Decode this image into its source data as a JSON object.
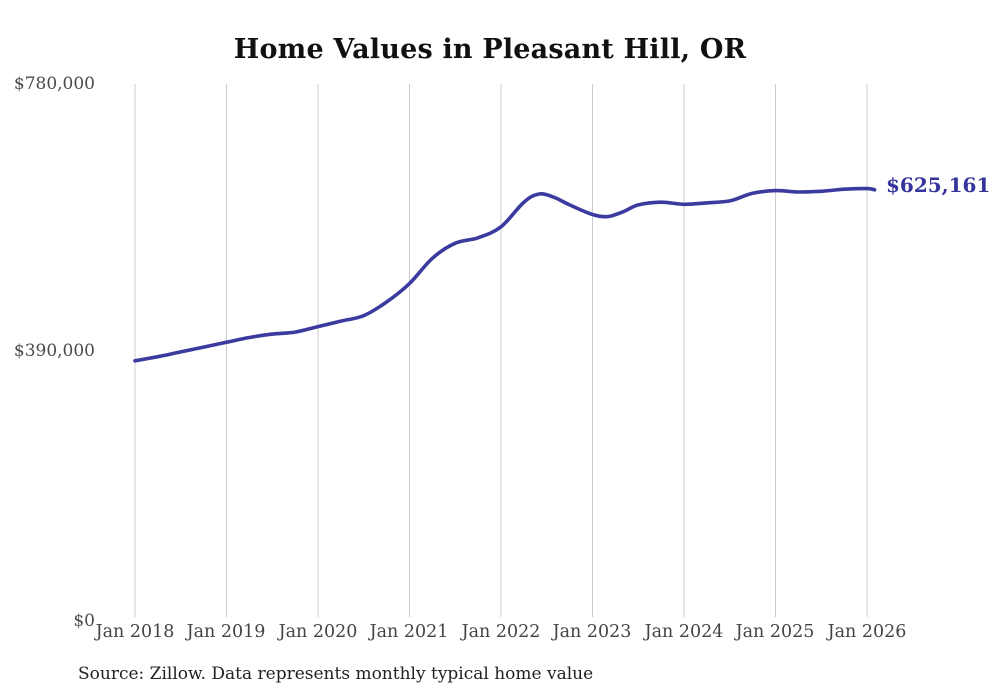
{
  "chart": {
    "title": "Home Values in Pleasant Hill, OR",
    "end_label": "$625,161",
    "source": "Source: Zillow. Data represents monthly typical home value",
    "line_color": "#3a3a9f",
    "grid_color": "#cccccc"
  },
  "chart_data": {
    "type": "line",
    "title": "Home Values in Pleasant Hill, OR",
    "xlabel": "",
    "ylabel": "",
    "ylim": [
      0,
      780000
    ],
    "grid": "vertical-only",
    "legend": false,
    "y_tick_labels": [
      "$780,000",
      "$390,000",
      "$0"
    ],
    "x_tick_labels": [
      "Jan 2018",
      "Jan 2019",
      "Jan 2020",
      "Jan 2021",
      "Jan 2022",
      "Jan 2023",
      "Jan 2024",
      "Jan 2025",
      "Jan 2026"
    ],
    "end_value": 625161,
    "end_value_label": "$625,161",
    "series": [
      {
        "name": "Monthly typical home value",
        "points": [
          {
            "date": "2018-01",
            "value": 375000
          },
          {
            "date": "2018-04",
            "value": 381000
          },
          {
            "date": "2018-07",
            "value": 388000
          },
          {
            "date": "2018-10",
            "value": 395000
          },
          {
            "date": "2019-01",
            "value": 402000
          },
          {
            "date": "2019-04",
            "value": 409000
          },
          {
            "date": "2019-07",
            "value": 414000
          },
          {
            "date": "2019-10",
            "value": 417000
          },
          {
            "date": "2020-01",
            "value": 425000
          },
          {
            "date": "2020-04",
            "value": 433000
          },
          {
            "date": "2020-07",
            "value": 441000
          },
          {
            "date": "2020-10",
            "value": 461000
          },
          {
            "date": "2021-01",
            "value": 488000
          },
          {
            "date": "2021-04",
            "value": 525000
          },
          {
            "date": "2021-07",
            "value": 547000
          },
          {
            "date": "2021-10",
            "value": 555000
          },
          {
            "date": "2022-01",
            "value": 571000
          },
          {
            "date": "2022-04",
            "value": 607000
          },
          {
            "date": "2022-06",
            "value": 619000
          },
          {
            "date": "2022-08",
            "value": 614000
          },
          {
            "date": "2022-10",
            "value": 603000
          },
          {
            "date": "2023-01",
            "value": 589000
          },
          {
            "date": "2023-03",
            "value": 586000
          },
          {
            "date": "2023-05",
            "value": 593000
          },
          {
            "date": "2023-07",
            "value": 603000
          },
          {
            "date": "2023-10",
            "value": 607000
          },
          {
            "date": "2024-01",
            "value": 604000
          },
          {
            "date": "2024-04",
            "value": 606000
          },
          {
            "date": "2024-07",
            "value": 609000
          },
          {
            "date": "2024-10",
            "value": 620000
          },
          {
            "date": "2025-01",
            "value": 624000
          },
          {
            "date": "2025-04",
            "value": 622000
          },
          {
            "date": "2025-07",
            "value": 623000
          },
          {
            "date": "2025-10",
            "value": 626000
          },
          {
            "date": "2026-01",
            "value": 627000
          },
          {
            "date": "2026-02",
            "value": 625161
          }
        ]
      }
    ]
  }
}
